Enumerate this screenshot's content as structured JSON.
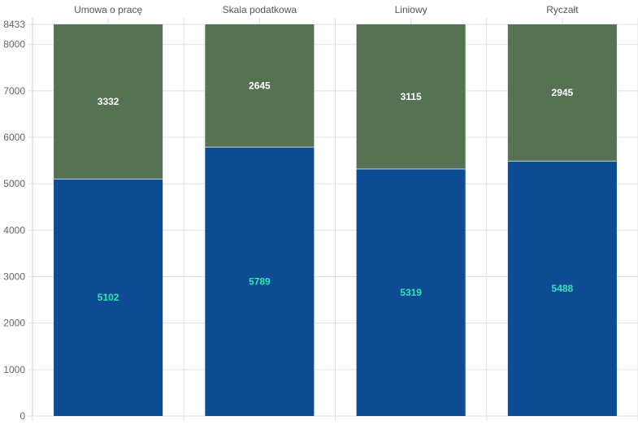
{
  "chart_data": {
    "type": "bar",
    "stacked": true,
    "categories": [
      "Umowa o pracę",
      "Skala podatkowa",
      "Liniowy",
      "Ryczałt"
    ],
    "category_axis_position": "top",
    "series": [
      {
        "values": [
          5102,
          5789,
          5319,
          5488
        ],
        "color": "#0d4c92",
        "label_color": "#2ee6b0"
      },
      {
        "values": [
          3332,
          2645,
          3115,
          2945
        ],
        "color": "#557252",
        "label_color": "#ffffff"
      }
    ],
    "ylim": [
      0,
      8433
    ],
    "yticks": [
      0,
      1000,
      2000,
      3000,
      4000,
      5000,
      6000,
      7000,
      8000,
      8433
    ],
    "grid": true,
    "grid_color": "#e0e0e0",
    "title": "",
    "xlabel": "",
    "ylabel": ""
  }
}
